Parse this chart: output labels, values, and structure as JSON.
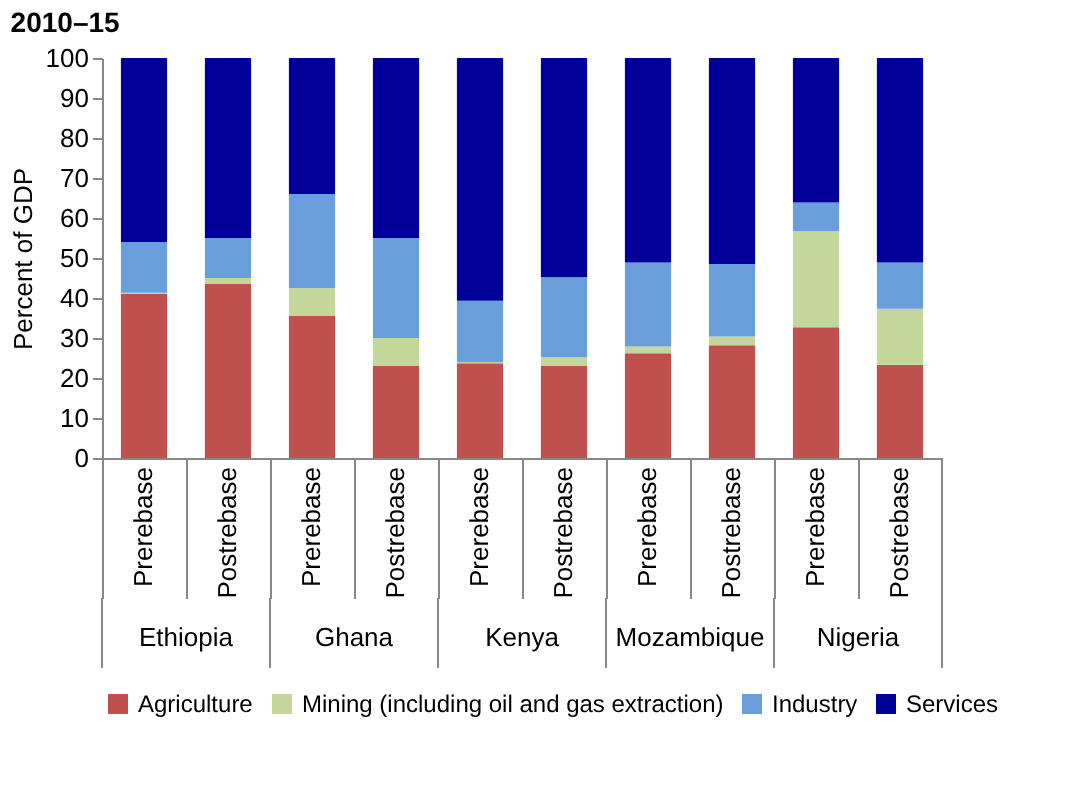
{
  "chart_data": {
    "type": "bar",
    "title": "2010–15",
    "ylabel": "Percent of GDP",
    "stacked": true,
    "categories": [
      "Prerebase",
      "Postrebase",
      "Prerebase",
      "Postrebase",
      "Prerebase",
      "Postrebase",
      "Prerebase",
      "Postrebase",
      "Prerebase",
      "Postrebase"
    ],
    "annotations": [
      "Ethiopia",
      "Ghana",
      "Kenya",
      "Mozambique",
      "Nigeria"
    ],
    "series": [
      {
        "name": "Agriculture",
        "color": "#c0504d",
        "values": [
          41,
          43.5,
          35.5,
          23,
          23.7,
          23,
          26.2,
          28.2,
          32.7,
          23.3
        ]
      },
      {
        "name": "Mining (including oil and gas extraction)",
        "color": "#c4d79b",
        "values": [
          0.3,
          1.5,
          7,
          7,
          0.3,
          2.2,
          1.7,
          2.2,
          24,
          14
        ]
      },
      {
        "name": "Industry",
        "color": "#6a9fdb",
        "values": [
          12.7,
          10,
          23.5,
          25,
          15.3,
          20,
          21,
          18.1,
          7.2,
          11.6
        ]
      },
      {
        "name": "Services",
        "color": "#000099",
        "values": [
          46,
          45,
          34,
          45,
          60.7,
          54.8,
          51.1,
          51.5,
          36.1,
          51.1
        ]
      }
    ],
    "ylim": [
      0,
      100
    ],
    "yticks": [
      0,
      10,
      20,
      30,
      40,
      50,
      60,
      70,
      80,
      90,
      100
    ],
    "grid": false,
    "legend": "bottom"
  }
}
